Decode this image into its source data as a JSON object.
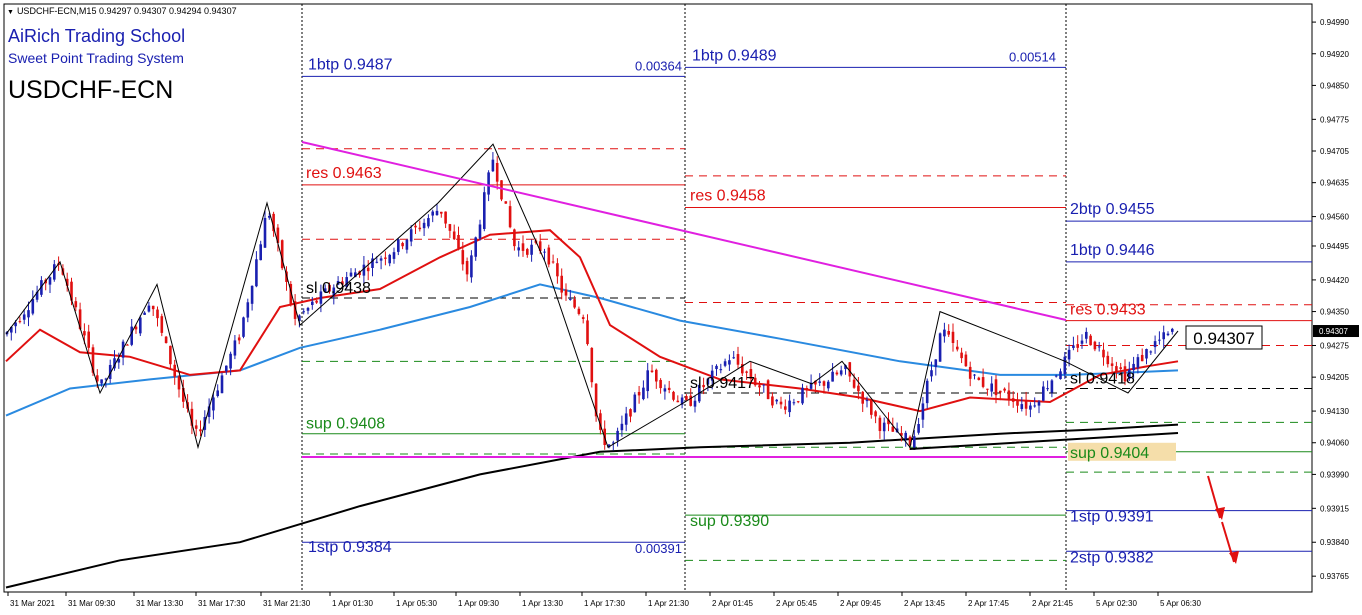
{
  "header": {
    "line": "USDCHF-ECN,M15  0.94297 0.94307 0.94294 0.94307",
    "school": "AiRich Trading School",
    "system": "Sweet Point Trading System",
    "symbol": "USDCHF-ECN"
  },
  "chart_data": {
    "type": "candlestick",
    "symbol": "USDCHF-ECN",
    "timeframe": "M15",
    "ohlc_last": {
      "open": 0.94297,
      "high": 0.94307,
      "low": 0.94294,
      "close": 0.94307
    },
    "current_price": "0.94307",
    "y_axis": {
      "range": [
        0.9373,
        0.9503
      ],
      "ticks": [
        "0.94990",
        "0.94920",
        "0.94850",
        "0.94775",
        "0.94705",
        "0.94635",
        "0.94560",
        "0.94495",
        "0.94420",
        "0.94350",
        "0.94275",
        "0.94205",
        "0.94130",
        "0.94060",
        "0.93990",
        "0.93915",
        "0.93840",
        "0.93765"
      ],
      "current_tag": "0.94307"
    },
    "x_axis": {
      "ticks": [
        "31 Mar 2021",
        "31 Mar 09:30",
        "31 Mar 13:30",
        "31 Mar 17:30",
        "31 Mar 21:30",
        "1 Apr 01:30",
        "1 Apr 05:30",
        "1 Apr 09:30",
        "1 Apr 13:30",
        "1 Apr 17:30",
        "1 Apr 21:30",
        "2 Apr 01:45",
        "2 Apr 05:45",
        "2 Apr 09:45",
        "2 Apr 13:45",
        "2 Apr 17:45",
        "2 Apr 21:45",
        "5 Apr 02:30",
        "5 Apr 06:30"
      ]
    },
    "sections": [
      {
        "labels": [
          {
            "id": "s1_1btp",
            "text": "1btp 0.9487",
            "color": "#1a20b0"
          },
          {
            "id": "s1_top",
            "text": "0.00364",
            "color": "#1a20b0"
          },
          {
            "id": "s1_res",
            "text": "res 0.9463",
            "color": "#e01010"
          },
          {
            "id": "s1_sl",
            "text": "sl 0.9438",
            "color": "#000000"
          },
          {
            "id": "s1_sup",
            "text": "sup 0.9408",
            "color": "#1a8a1a"
          },
          {
            "id": "s1_1stp",
            "text": "1stp 0.9384",
            "color": "#1a20b0"
          },
          {
            "id": "s1_bot",
            "text": "0.00391",
            "color": "#1a20b0"
          }
        ]
      },
      {
        "labels": [
          {
            "id": "s2_1btp",
            "text": "1btp 0.9489",
            "color": "#1a20b0"
          },
          {
            "id": "s2_top",
            "text": "0.00514",
            "color": "#1a20b0"
          },
          {
            "id": "s2_res",
            "text": "res 0.9458",
            "color": "#e01010"
          },
          {
            "id": "s2_sl",
            "text": "sl 0.9417",
            "color": "#000000"
          },
          {
            "id": "s2_sup",
            "text": "sup 0.9390",
            "color": "#1a8a1a"
          }
        ]
      },
      {
        "labels": [
          {
            "id": "s3_2btp",
            "text": "2btp 0.9455",
            "color": "#1a20b0"
          },
          {
            "id": "s3_1btp",
            "text": "1btp 0.9446",
            "color": "#1a20b0"
          },
          {
            "id": "s3_res",
            "text": "res 0.9433",
            "color": "#e01010"
          },
          {
            "id": "s3_sl",
            "text": "sl 0.9418",
            "color": "#000000"
          },
          {
            "id": "s3_sup",
            "text": "sup 0.9404",
            "color": "#1a8a1a"
          },
          {
            "id": "s3_1stp",
            "text": "1stp 0.9391",
            "color": "#1a20b0"
          },
          {
            "id": "s3_2stp",
            "text": "2stp 0.9382",
            "color": "#1a20b0"
          }
        ]
      }
    ],
    "colors": {
      "bull": "#1a20b0",
      "bear": "#e01010",
      "ma_fast": "#e01010",
      "ma_mid": "#2a8ae0",
      "ma_slow": "#000000",
      "trendline": "#e020e0",
      "support_band": "#f5deaa"
    }
  }
}
